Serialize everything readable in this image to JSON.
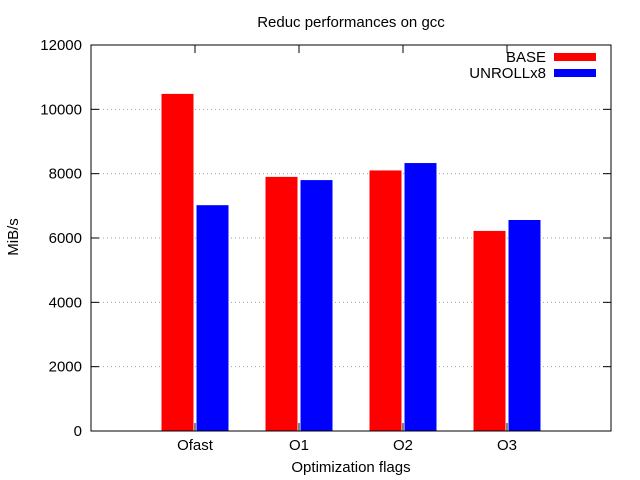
{
  "chart_data": {
    "type": "bar",
    "title": "Reduc performances on gcc",
    "xlabel": "Optimization flags",
    "ylabel": "MiB/s",
    "categories": [
      "Ofast",
      "O1",
      "O2",
      "O3"
    ],
    "ylim": [
      0,
      12000
    ],
    "yticks": [
      "0",
      "2000",
      "4000",
      "6000",
      "8000",
      "10000",
      "12000"
    ],
    "grid": "horizontal dotted",
    "legend": "top-right",
    "series": [
      {
        "name": "BASE",
        "color": "#ff0000",
        "values": [
          10480,
          7900,
          8100,
          6220
        ]
      },
      {
        "name": "UNROLLx8",
        "color": "#0000ff",
        "values": [
          7020,
          7800,
          8330,
          6560
        ]
      }
    ]
  }
}
